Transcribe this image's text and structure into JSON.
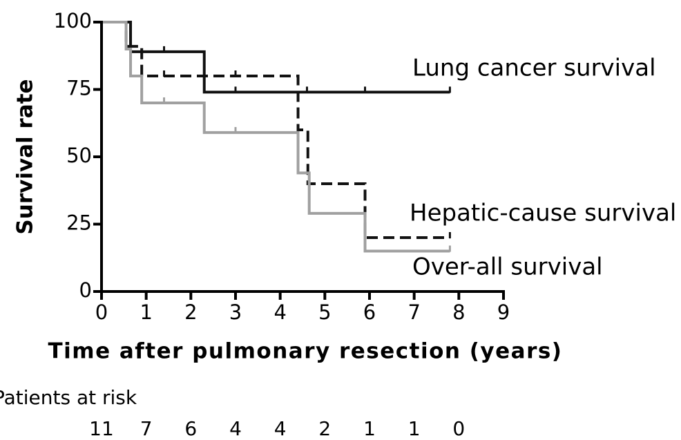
{
  "chart_data": {
    "type": "step",
    "xlabel": "Time after pulmonary resection (years)",
    "ylabel": "Survival rate",
    "xlim": [
      0,
      9
    ],
    "xticks": [
      0,
      1,
      2,
      3,
      4,
      5,
      6,
      7,
      8,
      9
    ],
    "ylim": [
      0,
      100
    ],
    "yticks": [
      0,
      25,
      50,
      75,
      100
    ],
    "series": [
      {
        "name": "Lung cancer survival",
        "color": "#111111",
        "dashed": false,
        "x": [
          0,
          0.65,
          0.65,
          2.3,
          2.3,
          7.8
        ],
        "values": [
          100,
          100,
          89,
          89,
          74,
          74
        ],
        "censor_x": [
          1.4,
          3.0,
          4.6,
          5.9,
          7.8
        ],
        "censor_y": [
          89,
          74,
          74,
          74,
          74
        ]
      },
      {
        "name": "Hepatic-cause survival",
        "color": "#111111",
        "dashed": true,
        "x": [
          0,
          0.55,
          0.55,
          0.9,
          0.9,
          4.4,
          4.4,
          4.62,
          4.62,
          5.9,
          5.9,
          7.8
        ],
        "values": [
          100,
          100,
          91,
          91,
          80,
          80,
          60,
          60,
          40,
          40,
          20,
          20
        ],
        "censor_x": [
          1.4,
          3.0,
          7.8
        ],
        "censor_y": [
          80,
          80,
          20
        ]
      },
      {
        "name": "Over-all survival",
        "color": "#a0a0a0",
        "dashed": false,
        "x": [
          0,
          0.55,
          0.55,
          0.65,
          0.65,
          0.9,
          0.9,
          2.3,
          2.3,
          4.4,
          4.4,
          4.65,
          4.65,
          5.9,
          5.9,
          7.8
        ],
        "values": [
          100,
          100,
          90,
          90,
          80,
          80,
          70,
          70,
          59,
          59,
          44,
          44,
          29,
          29,
          15,
          15
        ],
        "censor_x": [
          1.4,
          3.0,
          7.8
        ],
        "censor_y": [
          70,
          59,
          15
        ]
      }
    ],
    "risk_table": {
      "title": "Patients at risk",
      "x": [
        0,
        1,
        2,
        3,
        4,
        5,
        6,
        7,
        8
      ],
      "values": [
        11,
        7,
        6,
        4,
        4,
        2,
        1,
        1,
        0
      ]
    }
  }
}
